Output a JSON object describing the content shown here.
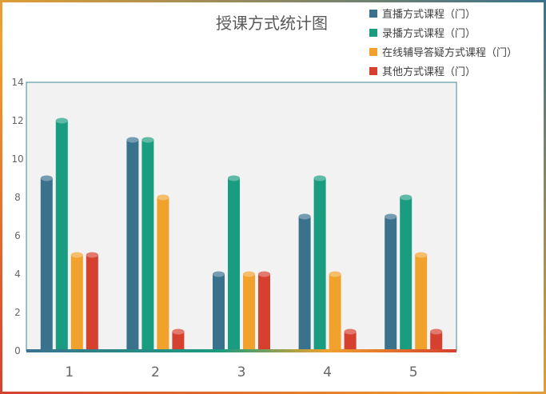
{
  "chart_data": {
    "type": "bar",
    "title": "授课方式统计图",
    "xlabel": "",
    "ylabel": "",
    "categories": [
      "1",
      "2",
      "3",
      "4",
      "5"
    ],
    "ylim": [
      0,
      14
    ],
    "yticks": [
      "0",
      "2",
      "4",
      "6",
      "8",
      "10",
      "12",
      "14"
    ],
    "grid": false,
    "legend_position": "top-right",
    "series": [
      {
        "name": "直播方式课程（门）",
        "color": "#3a728e",
        "values": [
          9,
          11,
          4,
          7,
          7
        ]
      },
      {
        "name": "录播方式课程（门）",
        "color": "#1a9c80",
        "values": [
          12,
          11,
          9,
          9,
          8
        ]
      },
      {
        "name": "在线辅导答疑方式课程（门）",
        "color": "#f0a22c",
        "values": [
          5,
          8,
          4,
          4,
          5
        ]
      },
      {
        "name": "其他方式课程（门）",
        "color": "#d5402f",
        "values": [
          5,
          1,
          4,
          1,
          1
        ]
      }
    ]
  }
}
